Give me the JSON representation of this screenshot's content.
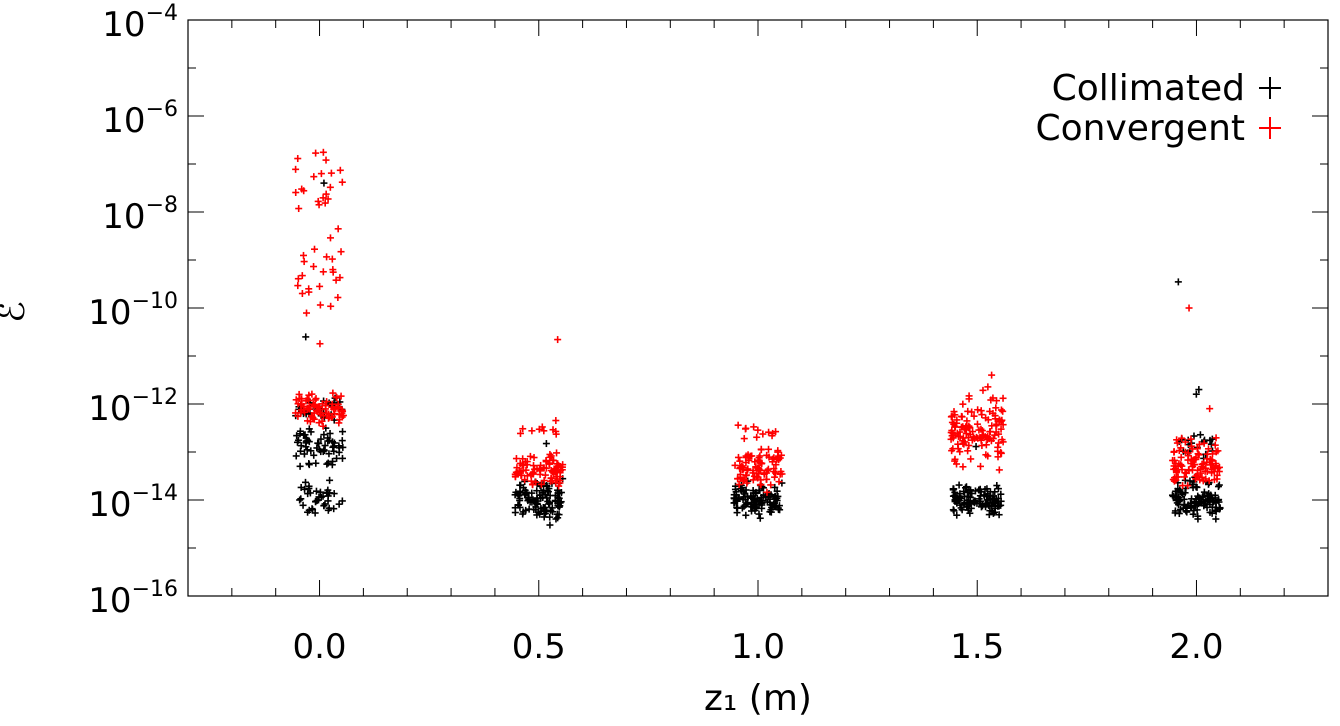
{
  "chart_data": {
    "type": "scatter",
    "xlabel": "z₁ (m)",
    "ylabel": "ℰ",
    "y_scale": "log",
    "xlim": [
      -0.3,
      2.3
    ],
    "ylim": [
      1e-16,
      0.0001
    ],
    "x_ticks": [
      {
        "value": 0.0,
        "label": "0.0"
      },
      {
        "value": 0.5,
        "label": "0.5"
      },
      {
        "value": 1.0,
        "label": "1.0"
      },
      {
        "value": 1.5,
        "label": "1.5"
      },
      {
        "value": 2.0,
        "label": "2.0"
      }
    ],
    "y_ticks": [
      {
        "exponent": -4,
        "base": "10",
        "sup": "−4"
      },
      {
        "exponent": -6,
        "base": "10",
        "sup": "−6"
      },
      {
        "exponent": -8,
        "base": "10",
        "sup": "−8"
      },
      {
        "exponent": -10,
        "base": "10",
        "sup": "−10"
      },
      {
        "exponent": -12,
        "base": "10",
        "sup": "−12"
      },
      {
        "exponent": -14,
        "base": "10",
        "sup": "−14"
      },
      {
        "exponent": -16,
        "base": "10",
        "sup": "−16"
      }
    ],
    "grid": false,
    "legend_position": "top-right",
    "legend": [
      {
        "label": "Collimated",
        "color": "#000000",
        "marker": "+"
      },
      {
        "label": "Convergent",
        "color": "#ff0000",
        "marker": "+"
      }
    ],
    "series": [
      {
        "name": "Collimated",
        "color": "#000000",
        "groups": [
          {
            "x": 0.0,
            "clusters": [
              {
                "center": 1e-14,
                "n": 40,
                "spread": 0.55,
                "dx": 0.055
              },
              {
                "center": 1.3e-13,
                "n": 60,
                "spread": 0.55,
                "dx": 0.055
              },
              {
                "center": 8e-13,
                "n": 30,
                "spread": 0.35,
                "dx": 0.055
              }
            ],
            "outliers": [
              4e-08,
              2.5e-11
            ]
          },
          {
            "x": 0.5,
            "clusters": [
              {
                "center": 1e-14,
                "n": 110,
                "spread": 0.55,
                "dx": 0.055
              }
            ],
            "outliers": [
              1.5e-13
            ]
          },
          {
            "x": 1.0,
            "clusters": [
              {
                "center": 1e-14,
                "n": 110,
                "spread": 0.45,
                "dx": 0.055
              }
            ],
            "outliers": []
          },
          {
            "x": 1.5,
            "clusters": [
              {
                "center": 1e-14,
                "n": 110,
                "spread": 0.45,
                "dx": 0.055
              }
            ],
            "outliers": [
              1.3e-13
            ]
          },
          {
            "x": 2.0,
            "clusters": [
              {
                "center": 1e-14,
                "n": 110,
                "spread": 0.55,
                "dx": 0.055
              },
              {
                "center": 1.3e-13,
                "n": 20,
                "spread": 0.4,
                "dx": 0.04
              }
            ],
            "outliers": [
              3.5e-10,
              2e-12,
              1.6e-12
            ]
          }
        ]
      },
      {
        "name": "Convergent",
        "color": "#ff0000",
        "groups": [
          {
            "x": 0.0,
            "clusters": [
              {
                "center": 7e-13,
                "n": 80,
                "spread": 0.5,
                "dx": 0.055
              },
              {
                "center": 3e-10,
                "n": 25,
                "spread": 1.4,
                "dx": 0.05
              },
              {
                "center": 5e-08,
                "n": 20,
                "spread": 1.2,
                "dx": 0.055
              }
            ],
            "outliers": [
              1.3e-07,
              1.8e-11
            ]
          },
          {
            "x": 0.5,
            "clusters": [
              {
                "center": 4.5e-14,
                "n": 90,
                "spread": 0.55,
                "dx": 0.055
              },
              {
                "center": 3e-13,
                "n": 10,
                "spread": 0.3,
                "dx": 0.05
              }
            ],
            "outliers": [
              2.2e-11
            ]
          },
          {
            "x": 1.0,
            "clusters": [
              {
                "center": 4.5e-14,
                "n": 90,
                "spread": 0.55,
                "dx": 0.055
              },
              {
                "center": 2.5e-13,
                "n": 12,
                "spread": 0.35,
                "dx": 0.05
              }
            ],
            "outliers": []
          },
          {
            "x": 1.5,
            "clusters": [
              {
                "center": 3e-13,
                "n": 130,
                "spread": 1.0,
                "dx": 0.06
              }
            ],
            "outliers": [
              4e-12
            ]
          },
          {
            "x": 2.0,
            "clusters": [
              {
                "center": 5e-14,
                "n": 90,
                "spread": 0.6,
                "dx": 0.055
              },
              {
                "center": 1.3e-13,
                "n": 15,
                "spread": 0.35,
                "dx": 0.05
              }
            ],
            "outliers": [
              1e-10,
              8e-13
            ]
          }
        ]
      }
    ]
  }
}
